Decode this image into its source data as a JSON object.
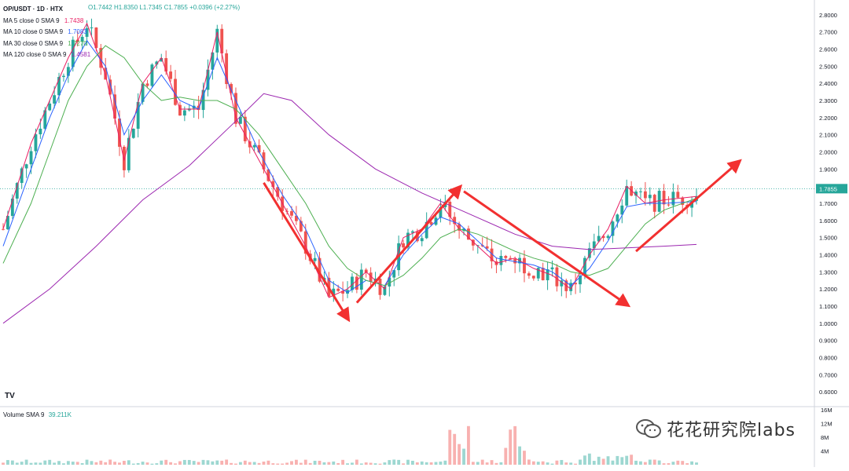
{
  "header": {
    "pair": "OP/USDT · 1D · HTX",
    "ohlc": {
      "o": "O1.7442",
      "h": "H1.8350",
      "l": "L1.7345",
      "c": "C1.7855",
      "change": "+0.0396 (+2.27%)"
    }
  },
  "indicators": [
    {
      "label": "MA 5 close 0 SMA 9",
      "value": "1.7438",
      "color": "#e91e63"
    },
    {
      "label": "MA 10 close 0 SMA 9",
      "value": "1.7083",
      "color": "#2962ff"
    },
    {
      "label": "MA 30 close 0 SMA 9",
      "value": "1.7270",
      "color": "#4caf50"
    },
    {
      "label": "MA 120 close 0 SMA 9",
      "value": "1.4581",
      "color": "#9c27b0"
    }
  ],
  "volume_label": {
    "label": "Volume SMA 9",
    "value": "39.211K"
  },
  "watermark": "花花研究院labs",
  "tv_logo": "TV",
  "colors": {
    "up": "#26a69a",
    "down": "#ef5350",
    "arrow": "#f23030",
    "grid_dot": "#26a69a"
  },
  "chart_data": {
    "type": "candlestick",
    "title": "OP/USDT · 1D · HTX",
    "last_price": "1.7855",
    "y_ticks": [
      "2.8000",
      "2.7000",
      "2.6000",
      "2.5000",
      "2.4000",
      "2.3000",
      "2.2000",
      "2.1000",
      "2.0000",
      "1.9000",
      "1.8000",
      "1.7000",
      "1.6000",
      "1.5000",
      "1.4000",
      "1.3000",
      "1.2000",
      "1.1000",
      "1.0000",
      "0.9000",
      "0.8000",
      "0.7000",
      "0.6000"
    ],
    "y_range": [
      0.55,
      2.85
    ],
    "volume_ticks": [
      "16M",
      "12M",
      "8M",
      "4M"
    ],
    "volume_range": [
      0,
      16
    ],
    "candle_count": 150,
    "ma_series": [
      {
        "name": "MA 5",
        "color": "#e91e63",
        "points": [
          [
            0,
            1.55
          ],
          [
            6,
            2.05
          ],
          [
            10,
            2.3
          ],
          [
            14,
            2.55
          ],
          [
            18,
            2.75
          ],
          [
            22,
            2.45
          ],
          [
            26,
            1.95
          ],
          [
            30,
            2.4
          ],
          [
            34,
            2.55
          ],
          [
            38,
            2.25
          ],
          [
            42,
            2.25
          ],
          [
            46,
            2.7
          ],
          [
            50,
            2.2
          ],
          [
            55,
            1.95
          ],
          [
            60,
            1.7
          ],
          [
            65,
            1.45
          ],
          [
            70,
            1.15
          ],
          [
            74,
            1.2
          ],
          [
            78,
            1.3
          ],
          [
            82,
            1.2
          ],
          [
            86,
            1.5
          ],
          [
            90,
            1.55
          ],
          [
            94,
            1.7
          ],
          [
            98,
            1.55
          ],
          [
            102,
            1.45
          ],
          [
            106,
            1.35
          ],
          [
            110,
            1.38
          ],
          [
            114,
            1.32
          ],
          [
            118,
            1.28
          ],
          [
            122,
            1.2
          ],
          [
            126,
            1.4
          ],
          [
            130,
            1.55
          ],
          [
            134,
            1.8
          ],
          [
            138,
            1.7
          ],
          [
            142,
            1.72
          ],
          [
            149,
            1.74
          ]
        ]
      },
      {
        "name": "MA 10",
        "color": "#2962ff",
        "points": [
          [
            0,
            1.45
          ],
          [
            6,
            1.9
          ],
          [
            10,
            2.2
          ],
          [
            14,
            2.45
          ],
          [
            18,
            2.65
          ],
          [
            22,
            2.5
          ],
          [
            26,
            2.1
          ],
          [
            30,
            2.3
          ],
          [
            34,
            2.45
          ],
          [
            38,
            2.3
          ],
          [
            42,
            2.25
          ],
          [
            46,
            2.55
          ],
          [
            50,
            2.3
          ],
          [
            55,
            2.0
          ],
          [
            60,
            1.75
          ],
          [
            65,
            1.55
          ],
          [
            70,
            1.25
          ],
          [
            74,
            1.18
          ],
          [
            78,
            1.25
          ],
          [
            82,
            1.22
          ],
          [
            86,
            1.4
          ],
          [
            90,
            1.52
          ],
          [
            94,
            1.62
          ],
          [
            98,
            1.58
          ],
          [
            102,
            1.48
          ],
          [
            106,
            1.38
          ],
          [
            110,
            1.36
          ],
          [
            114,
            1.34
          ],
          [
            118,
            1.3
          ],
          [
            122,
            1.22
          ],
          [
            126,
            1.32
          ],
          [
            130,
            1.48
          ],
          [
            134,
            1.68
          ],
          [
            138,
            1.7
          ],
          [
            142,
            1.7
          ],
          [
            149,
            1.71
          ]
        ]
      },
      {
        "name": "MA 30",
        "color": "#4caf50",
        "points": [
          [
            0,
            1.35
          ],
          [
            6,
            1.7
          ],
          [
            10,
            2.0
          ],
          [
            14,
            2.3
          ],
          [
            18,
            2.5
          ],
          [
            22,
            2.62
          ],
          [
            26,
            2.55
          ],
          [
            30,
            2.4
          ],
          [
            34,
            2.3
          ],
          [
            38,
            2.32
          ],
          [
            42,
            2.3
          ],
          [
            46,
            2.3
          ],
          [
            50,
            2.25
          ],
          [
            55,
            2.1
          ],
          [
            60,
            1.9
          ],
          [
            65,
            1.7
          ],
          [
            70,
            1.45
          ],
          [
            74,
            1.32
          ],
          [
            78,
            1.25
          ],
          [
            82,
            1.22
          ],
          [
            86,
            1.28
          ],
          [
            90,
            1.38
          ],
          [
            94,
            1.5
          ],
          [
            98,
            1.55
          ],
          [
            102,
            1.52
          ],
          [
            106,
            1.47
          ],
          [
            110,
            1.42
          ],
          [
            114,
            1.38
          ],
          [
            118,
            1.35
          ],
          [
            122,
            1.3
          ],
          [
            126,
            1.28
          ],
          [
            130,
            1.32
          ],
          [
            134,
            1.45
          ],
          [
            138,
            1.58
          ],
          [
            142,
            1.66
          ],
          [
            149,
            1.73
          ]
        ]
      },
      {
        "name": "MA 120",
        "color": "#9c27b0",
        "points": [
          [
            0,
            1.0
          ],
          [
            10,
            1.2
          ],
          [
            20,
            1.45
          ],
          [
            30,
            1.72
          ],
          [
            40,
            1.92
          ],
          [
            50,
            2.18
          ],
          [
            56,
            2.34
          ],
          [
            62,
            2.3
          ],
          [
            70,
            2.1
          ],
          [
            80,
            1.9
          ],
          [
            90,
            1.76
          ],
          [
            100,
            1.64
          ],
          [
            110,
            1.52
          ],
          [
            118,
            1.45
          ],
          [
            126,
            1.43
          ],
          [
            134,
            1.44
          ],
          [
            142,
            1.45
          ],
          [
            149,
            1.46
          ]
        ]
      }
    ],
    "arrows": [
      {
        "from": [
          56,
          1.82
        ],
        "to": [
          74,
          1.03
        ]
      },
      {
        "from": [
          76,
          1.12
        ],
        "to": [
          98,
          1.79
        ]
      },
      {
        "from": [
          99,
          1.77
        ],
        "to": [
          134,
          1.11
        ]
      },
      {
        "from": [
          136,
          1.42
        ],
        "to": [
          158,
          1.94
        ]
      }
    ]
  }
}
